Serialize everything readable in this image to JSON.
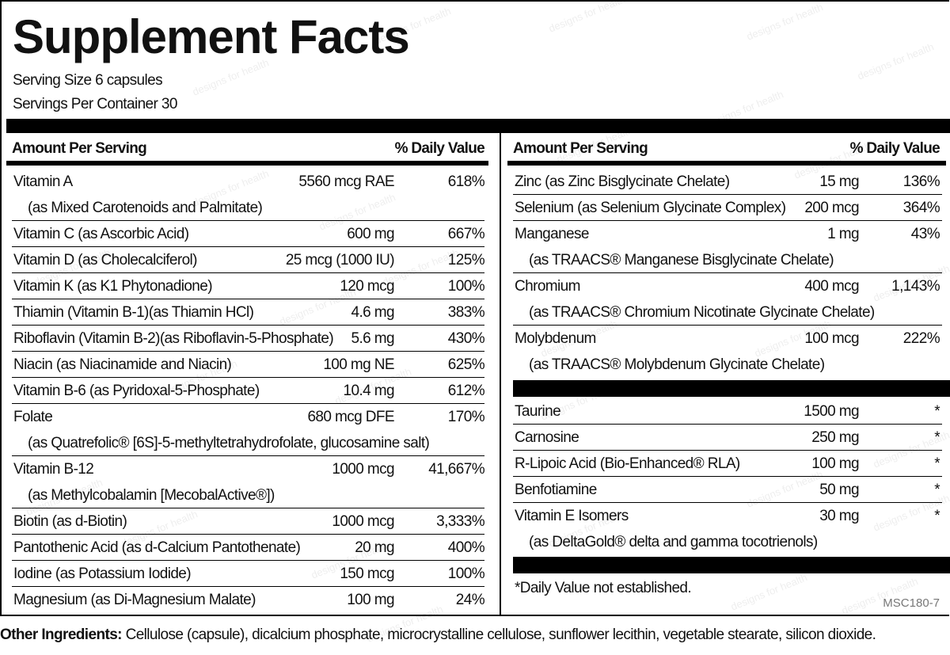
{
  "header": {
    "title": "Supplement Facts",
    "serving_size": "Serving Size 6 capsules",
    "servings_per_container": "Servings Per Container 30"
  },
  "watermark": "designs for health",
  "left": {
    "header": [
      "Amount Per Serving",
      "% Daily Value"
    ],
    "rows": [
      {
        "name": "Vitamin A",
        "amount": "5560 mcg RAE",
        "dv": "618%",
        "sub": "(as Mixed Carotenoids and Palmitate)"
      },
      {
        "name": "Vitamin C (as Ascorbic Acid)",
        "amount": "600 mg",
        "dv": "667%"
      },
      {
        "name": "Vitamin D (as Cholecalciferol)",
        "amount": "25 mcg (1000 IU)",
        "dv": "125%"
      },
      {
        "name": "Vitamin K (as K1 Phytonadione)",
        "amount": "120 mcg",
        "dv": "100%"
      },
      {
        "name": "Thiamin (Vitamin B-1)(as Thiamin HCl)",
        "amount": "4.6 mg",
        "dv": "383%"
      },
      {
        "name": "Riboflavin (Vitamin B-2)(as Riboflavin-5-Phosphate)",
        "amount": "5.6 mg",
        "dv": "430%"
      },
      {
        "name": "Niacin (as Niacinamide and Niacin)",
        "amount": "100 mg NE",
        "dv": "625%"
      },
      {
        "name": "Vitamin B-6 (as Pyridoxal-5-Phosphate)",
        "amount": "10.4 mg",
        "dv": "612%"
      },
      {
        "name": "Folate",
        "amount": "680 mcg DFE",
        "dv": "170%",
        "sub": "(as Quatrefolic® [6S]-5-methyltetrahydrofolate, glucosamine salt)"
      },
      {
        "name": "Vitamin B-12",
        "amount": "1000 mcg",
        "dv": "41,667%",
        "sub": "(as Methylcobalamin [MecobalActive®])"
      },
      {
        "name": "Biotin (as d-Biotin)",
        "amount": "1000 mcg",
        "dv": "3,333%"
      },
      {
        "name": "Pantothenic Acid (as d-Calcium Pantothenate)",
        "amount": "20 mg",
        "dv": "400%"
      },
      {
        "name": "Iodine (as Potassium Iodide)",
        "amount": "150 mcg",
        "dv": "100%"
      },
      {
        "name": "Magnesium (as Di-Magnesium Malate)",
        "amount": "100 mg",
        "dv": "24%"
      }
    ]
  },
  "right": {
    "header": [
      "Amount Per Serving",
      "% Daily Value"
    ],
    "rows": [
      {
        "name": "Zinc (as Zinc Bisglycinate Chelate)",
        "amount": "15 mg",
        "dv": "136%"
      },
      {
        "name": "Selenium (as Selenium Glycinate Complex)",
        "amount": "200 mcg",
        "dv": "364%"
      },
      {
        "name": "Manganese",
        "amount": "1 mg",
        "dv": "43%",
        "sub": "(as TRAACS® Manganese Bisglycinate Chelate)"
      },
      {
        "name": "Chromium",
        "amount": "400 mcg",
        "dv": "1,143%",
        "sub": "(as TRAACS® Chromium Nicotinate Glycinate Chelate)"
      },
      {
        "name": "Molybdenum",
        "amount": "100 mcg",
        "dv": "222%",
        "sub": "(as TRAACS® Molybdenum Glycinate Chelate)"
      }
    ],
    "rows2": [
      {
        "name": "Taurine",
        "amount": "1500 mg",
        "dv": "*"
      },
      {
        "name": "Carnosine",
        "amount": "250 mg",
        "dv": "*"
      },
      {
        "name": "R-Lipoic Acid (Bio-Enhanced® RLA)",
        "amount": "100 mg",
        "dv": "*"
      },
      {
        "name": "Benfotiamine",
        "amount": "50 mg",
        "dv": "*"
      },
      {
        "name": "Vitamin E Isomers",
        "amount": "30 mg",
        "dv": "*",
        "sub": "(as DeltaGold® delta and gamma tocotrienols)"
      }
    ],
    "footnote": "*Daily Value not established.",
    "code": "MSC180-7"
  },
  "other_ingredients": {
    "label": "Other Ingredients:",
    "text": "Cellulose (capsule), dicalcium phosphate, microcrystalline cellulose, sunflower lecithin, vegetable stearate, silicon dioxide."
  }
}
